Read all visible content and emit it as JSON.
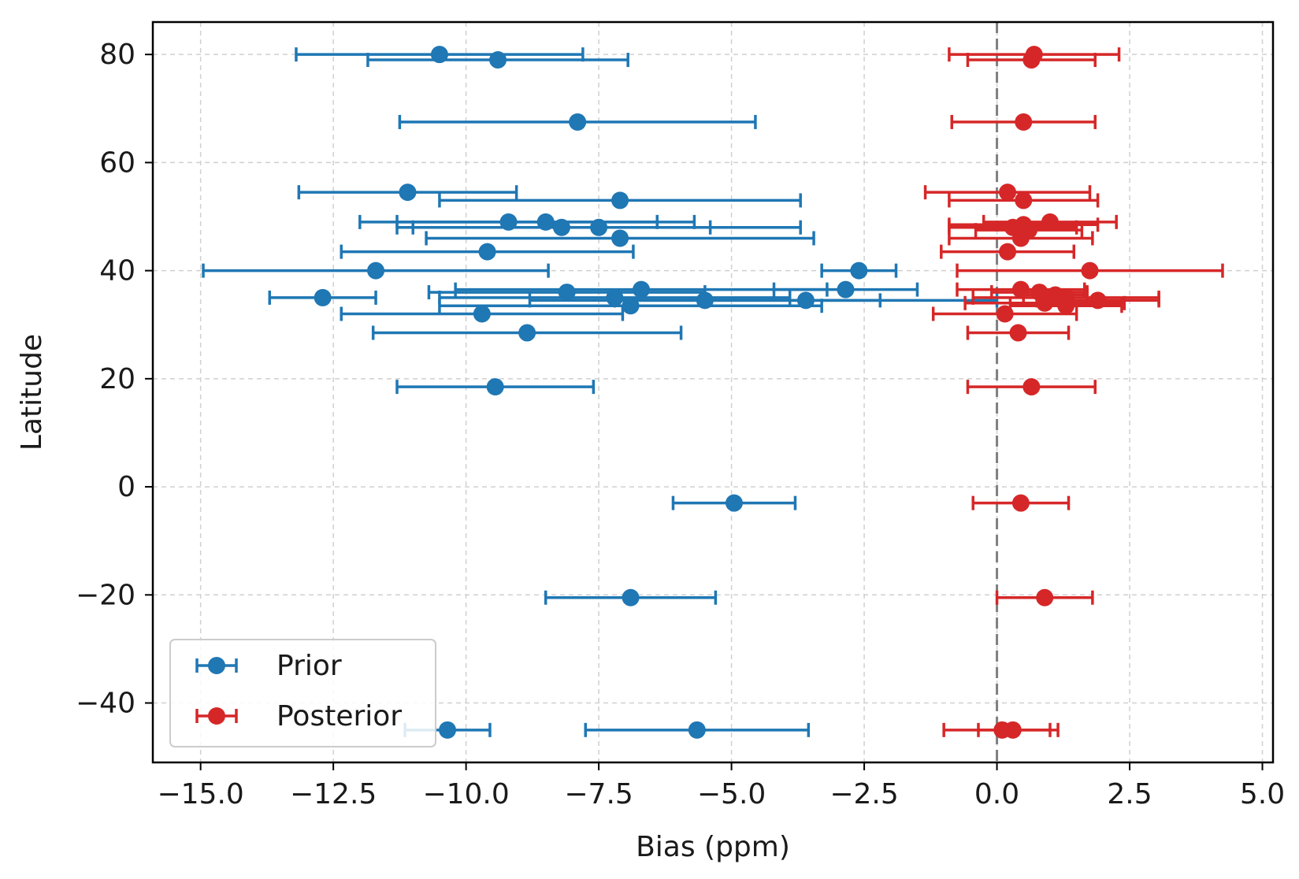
{
  "chart_data": {
    "type": "scatter",
    "title": "",
    "xlabel": "Bias (ppm)",
    "ylabel": "Latitude",
    "xlim": [
      -15.9,
      5.2
    ],
    "ylim": [
      -51,
      86
    ],
    "xticks": [
      -15.0,
      -12.5,
      -10.0,
      -7.5,
      -5.0,
      -2.5,
      0.0,
      2.5,
      5.0
    ],
    "xtick_labels": [
      "−15.0",
      "−12.5",
      "−10.0",
      "−7.5",
      "−5.0",
      "−2.5",
      "0.0",
      "2.5",
      "5.0"
    ],
    "yticks": [
      -40,
      -20,
      0,
      20,
      40,
      60,
      80
    ],
    "ytick_labels": [
      "−40",
      "−20",
      "0",
      "20",
      "40",
      "60",
      "80"
    ],
    "grid": true,
    "reference_line": {
      "x": 0,
      "style": "dashed",
      "color": "#808080"
    },
    "legend_position": "lower-left",
    "series": [
      {
        "name": "Prior",
        "color": "#1f77b4",
        "points": [
          {
            "x": -10.5,
            "y": 80,
            "xerr_low": 2.7,
            "xerr_high": 2.7
          },
          {
            "x": -9.4,
            "y": 79,
            "xerr_low": 2.45,
            "xerr_high": 2.45
          },
          {
            "x": -7.9,
            "y": 67.5,
            "xerr_low": 3.35,
            "xerr_high": 3.35
          },
          {
            "x": -11.1,
            "y": 54.5,
            "xerr_low": 2.05,
            "xerr_high": 2.05
          },
          {
            "x": -7.1,
            "y": 53,
            "xerr_low": 3.4,
            "xerr_high": 3.4
          },
          {
            "x": -9.2,
            "y": 49,
            "xerr_low": 2.8,
            "xerr_high": 2.8
          },
          {
            "x": -8.5,
            "y": 49,
            "xerr_low": 2.8,
            "xerr_high": 2.8
          },
          {
            "x": -8.2,
            "y": 48,
            "xerr_low": 2.8,
            "xerr_high": 2.8
          },
          {
            "x": -7.5,
            "y": 48,
            "xerr_low": 3.8,
            "xerr_high": 3.8
          },
          {
            "x": -7.1,
            "y": 46,
            "xerr_low": 3.65,
            "xerr_high": 3.65
          },
          {
            "x": -9.6,
            "y": 43.5,
            "xerr_low": 2.75,
            "xerr_high": 2.75
          },
          {
            "x": -11.7,
            "y": 40,
            "xerr_low": 3.25,
            "xerr_high": 3.25
          },
          {
            "x": -2.6,
            "y": 40,
            "xerr_low": 0.7,
            "xerr_high": 0.7
          },
          {
            "x": -12.7,
            "y": 35,
            "xerr_low": 1.0,
            "xerr_high": 1.0
          },
          {
            "x": -8.1,
            "y": 36,
            "xerr_low": 2.6,
            "xerr_high": 2.6
          },
          {
            "x": -6.7,
            "y": 36.5,
            "xerr_low": 3.5,
            "xerr_high": 3.5
          },
          {
            "x": -2.85,
            "y": 36.5,
            "xerr_low": 1.35,
            "xerr_high": 1.35
          },
          {
            "x": -7.2,
            "y": 35,
            "xerr_low": 3.3,
            "xerr_high": 3.3
          },
          {
            "x": -5.5,
            "y": 34.5,
            "xerr_low": 3.3,
            "xerr_high": 3.3
          },
          {
            "x": -3.6,
            "y": 34.5,
            "xerr_low": 3.6,
            "xerr_high": 3.6
          },
          {
            "x": -6.9,
            "y": 33.5,
            "xerr_low": 3.6,
            "xerr_high": 3.6
          },
          {
            "x": -9.7,
            "y": 32,
            "xerr_low": 2.65,
            "xerr_high": 2.65
          },
          {
            "x": -8.85,
            "y": 28.5,
            "xerr_low": 2.9,
            "xerr_high": 2.9
          },
          {
            "x": -9.45,
            "y": 18.5,
            "xerr_low": 1.85,
            "xerr_high": 1.85
          },
          {
            "x": -4.95,
            "y": -3,
            "xerr_low": 1.15,
            "xerr_high": 1.15
          },
          {
            "x": -6.9,
            "y": -20.5,
            "xerr_low": 1.6,
            "xerr_high": 1.6
          },
          {
            "x": -10.35,
            "y": -45,
            "xerr_low": 0.8,
            "xerr_high": 0.8
          },
          {
            "x": -5.65,
            "y": -45,
            "xerr_low": 2.1,
            "xerr_high": 2.1
          }
        ]
      },
      {
        "name": "Posterior",
        "color": "#d62728",
        "points": [
          {
            "x": 0.7,
            "y": 80,
            "xerr_low": 1.6,
            "xerr_high": 1.6
          },
          {
            "x": 0.65,
            "y": 79,
            "xerr_low": 1.2,
            "xerr_high": 1.2
          },
          {
            "x": 0.5,
            "y": 67.5,
            "xerr_low": 1.35,
            "xerr_high": 1.35
          },
          {
            "x": 0.2,
            "y": 54.5,
            "xerr_low": 1.55,
            "xerr_high": 1.55
          },
          {
            "x": 0.5,
            "y": 53,
            "xerr_low": 1.4,
            "xerr_high": 1.4
          },
          {
            "x": 1.0,
            "y": 49,
            "xerr_low": 1.25,
            "xerr_high": 1.25
          },
          {
            "x": 0.5,
            "y": 48.5,
            "xerr_low": 1.4,
            "xerr_high": 1.4
          },
          {
            "x": 0.3,
            "y": 48,
            "xerr_low": 1.2,
            "xerr_high": 1.2
          },
          {
            "x": 0.6,
            "y": 47.5,
            "xerr_low": 1.0,
            "xerr_high": 1.0
          },
          {
            "x": 0.45,
            "y": 46,
            "xerr_low": 1.35,
            "xerr_high": 1.35
          },
          {
            "x": 0.2,
            "y": 43.5,
            "xerr_low": 1.25,
            "xerr_high": 1.25
          },
          {
            "x": 1.75,
            "y": 40,
            "xerr_low": 2.5,
            "xerr_high": 2.5
          },
          {
            "x": 0.45,
            "y": 36.5,
            "xerr_low": 1.2,
            "xerr_high": 1.2
          },
          {
            "x": 0.8,
            "y": 36,
            "xerr_low": 0.9,
            "xerr_high": 0.9
          },
          {
            "x": 1.1,
            "y": 35.5,
            "xerr_low": 0.6,
            "xerr_high": 0.6
          },
          {
            "x": 1.3,
            "y": 35,
            "xerr_low": 1.75,
            "xerr_high": 1.75
          },
          {
            "x": 1.9,
            "y": 34.5,
            "xerr_low": 1.15,
            "xerr_high": 1.15
          },
          {
            "x": 0.9,
            "y": 34,
            "xerr_low": 1.5,
            "xerr_high": 1.5
          },
          {
            "x": 1.3,
            "y": 33.5,
            "xerr_low": 1.05,
            "xerr_high": 1.05
          },
          {
            "x": 0.15,
            "y": 32,
            "xerr_low": 1.35,
            "xerr_high": 1.35
          },
          {
            "x": 0.4,
            "y": 28.5,
            "xerr_low": 0.95,
            "xerr_high": 0.95
          },
          {
            "x": 0.65,
            "y": 18.5,
            "xerr_low": 1.2,
            "xerr_high": 1.2
          },
          {
            "x": 0.45,
            "y": -3,
            "xerr_low": 0.9,
            "xerr_high": 0.9
          },
          {
            "x": 0.9,
            "y": -20.5,
            "xerr_low": 0.9,
            "xerr_high": 0.9
          },
          {
            "x": 0.3,
            "y": -45,
            "xerr_low": 1.3,
            "xerr_high": 0.85
          },
          {
            "x": 0.1,
            "y": -45,
            "xerr_low": 0.45,
            "xerr_high": 0.9
          }
        ]
      }
    ]
  },
  "legend": {
    "items": [
      {
        "label": "Prior",
        "color": "#1f77b4"
      },
      {
        "label": "Posterior",
        "color": "#d62728"
      }
    ]
  }
}
